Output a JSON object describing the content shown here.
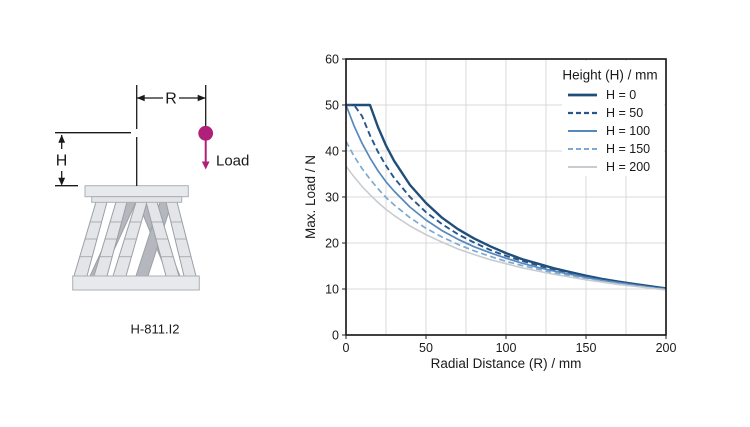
{
  "diagram": {
    "label_r": "R",
    "label_h": "H",
    "label_load": "Load",
    "caption": "H-811.I2",
    "load_color": "#b0207a",
    "line_color": "#1a1a1a",
    "strut_light_color": "#e4e5e8",
    "strut_dark_color": "#b4b7bd",
    "plate_color": "#e8e9ec"
  },
  "chart_data": {
    "type": "line",
    "title": "",
    "xlabel": "Radial Distance (R) / mm",
    "ylabel": "Max. Load / N",
    "xlim": [
      0,
      200
    ],
    "ylim": [
      0,
      60
    ],
    "x_ticks": [
      0,
      50,
      100,
      150,
      200
    ],
    "y_ticks": [
      0,
      10,
      20,
      30,
      40,
      50,
      60
    ],
    "x_minor_grid_step": 25,
    "y_grid_step": 10,
    "grid": true,
    "grid_color": "#d9d9d9",
    "frame_color": "#111111",
    "legend_title": "Height (H) / mm",
    "legend_position": "top-right",
    "x": [
      0,
      5,
      10,
      15,
      20,
      25,
      30,
      40,
      50,
      60,
      70,
      80,
      90,
      100,
      110,
      120,
      130,
      140,
      150,
      160,
      170,
      180,
      190,
      200
    ],
    "series": [
      {
        "name": "H = 0",
        "color": "#1f4e79",
        "dash": "solid",
        "width": 2.4,
        "values": [
          50,
          50,
          50,
          50,
          45.2,
          41.2,
          37.9,
          32.6,
          28.7,
          25.5,
          23.0,
          21.0,
          19.3,
          17.8,
          16.5,
          15.5,
          14.5,
          13.7,
          12.9,
          12.2,
          11.6,
          11.1,
          10.6,
          10.1
        ]
      },
      {
        "name": "H = 50",
        "color": "#27568c",
        "dash": "dashed",
        "width": 1.9,
        "values": [
          50,
          50,
          47.6,
          43.4,
          39.8,
          36.8,
          34.2,
          30.0,
          26.7,
          24.1,
          21.9,
          20.1,
          18.5,
          17.2,
          16.1,
          15.1,
          14.2,
          13.4,
          12.7,
          12.1,
          11.5,
          11.0,
          10.5,
          10.1
        ]
      },
      {
        "name": "H = 100",
        "color": "#5688bd",
        "dash": "solid",
        "width": 1.7,
        "values": [
          50,
          45.5,
          41.7,
          38.5,
          35.7,
          33.3,
          31.3,
          27.8,
          25.0,
          22.7,
          20.8,
          19.2,
          17.9,
          16.7,
          15.6,
          14.7,
          13.9,
          13.2,
          12.5,
          11.9,
          11.4,
          10.9,
          10.4,
          10.0
        ]
      },
      {
        "name": "H = 150",
        "color": "#7fa8d2",
        "dash": "dashed",
        "width": 1.7,
        "values": [
          42.1,
          38.9,
          36.2,
          33.9,
          31.8,
          29.9,
          28.3,
          25.5,
          23.2,
          21.3,
          19.7,
          18.3,
          17.1,
          16.0,
          15.1,
          14.3,
          13.5,
          12.9,
          12.2,
          11.7,
          11.2,
          10.7,
          10.3,
          9.9
        ]
      },
      {
        "name": "H = 200",
        "color": "#c8ccd1",
        "dash": "solid",
        "width": 1.6,
        "values": [
          36.7,
          34.4,
          32.3,
          30.5,
          28.8,
          27.3,
          26.0,
          23.7,
          21.8,
          20.2,
          18.7,
          17.5,
          16.4,
          15.5,
          14.6,
          13.9,
          13.2,
          12.6,
          12.0,
          11.5,
          11.0,
          10.6,
          10.2,
          9.8
        ]
      }
    ]
  }
}
